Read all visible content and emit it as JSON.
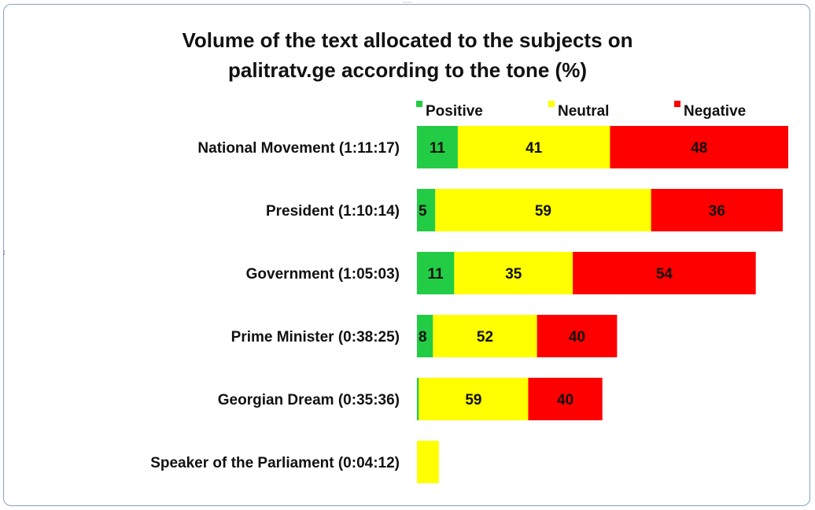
{
  "chart_data": {
    "type": "bar",
    "orientation": "horizontal",
    "stacked": true,
    "title_lines": [
      "Volume of the text allocated to the subjects on",
      "palitratv.ge according to the tone (%)"
    ],
    "categories": [
      "National Movement (1:11:17)",
      "President (1:10:14)",
      "Government (1:05:03)",
      "Prime Minister (0:38:25)",
      "Georgian Dream (0:35:36)",
      "Speaker of the Parliament (0:04:12)"
    ],
    "series": [
      {
        "name": "Positive",
        "color": "#22cc44",
        "values": [
          11,
          5,
          11,
          8,
          1,
          0
        ],
        "labels": [
          "11",
          "5",
          "11",
          "8",
          "",
          ""
        ]
      },
      {
        "name": "Neutral",
        "color": "#ffff00",
        "values": [
          41,
          59,
          35,
          52,
          59,
          100
        ],
        "labels": [
          "41",
          "59",
          "35",
          "52",
          "59",
          ""
        ]
      },
      {
        "name": "Negative",
        "color": "#ff0000",
        "values": [
          48,
          36,
          54,
          40,
          40,
          0
        ],
        "labels": [
          "48",
          "36",
          "54",
          "40",
          "40",
          ""
        ]
      }
    ],
    "duration_seconds": [
      4277,
      4214,
      3903,
      2305,
      2136,
      252
    ],
    "legend_position": "top",
    "grid": false,
    "axes_visible": false
  }
}
